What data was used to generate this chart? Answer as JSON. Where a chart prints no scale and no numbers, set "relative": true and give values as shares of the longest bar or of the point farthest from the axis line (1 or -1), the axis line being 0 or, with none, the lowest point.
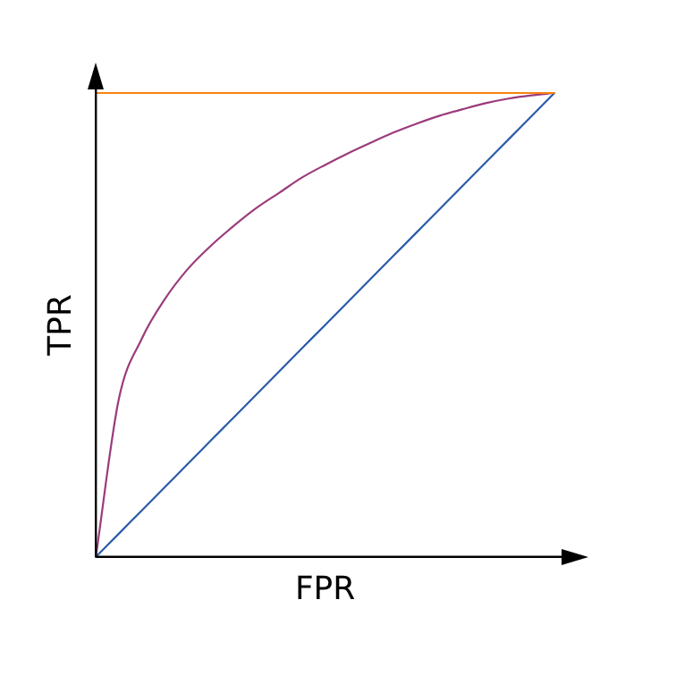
{
  "chart_data": {
    "type": "line",
    "relative": true,
    "xlabel": "FPR",
    "ylabel": "TPR",
    "grid": false,
    "legend": false,
    "marker": "none",
    "line_style": "solid",
    "categories": [
      null,
      null,
      null,
      null,
      null,
      null,
      null,
      null,
      null,
      null,
      null,
      null,
      null,
      null,
      null,
      null,
      null,
      null,
      null,
      null,
      null
    ],
    "series": [
      {
        "color": "#f7830f",
        "values": [
          1,
          1,
          1,
          1,
          1,
          1,
          1,
          1,
          1,
          1,
          1,
          1,
          1,
          1,
          1,
          1,
          1,
          1,
          1,
          1,
          1
        ]
      },
      {
        "color": "#2b5ca8",
        "values": [
          0,
          0.05,
          0.1,
          0.15,
          0.2,
          0.25,
          0.3,
          0.35,
          0.4,
          0.45,
          0.5,
          0.55,
          0.6,
          0.65,
          0.7,
          0.75,
          0.8,
          0.85,
          0.9,
          0.95,
          1
        ]
      },
      {
        "color": "#9b3b7c",
        "values": [
          0,
          0.34,
          0.47,
          0.555,
          0.62,
          0.67,
          0.713,
          0.752,
          0.785,
          0.818,
          0.845,
          0.87,
          0.893,
          0.915,
          0.934,
          0.951,
          0.965,
          0.978,
          0.988,
          0.995,
          1
        ]
      }
    ]
  }
}
